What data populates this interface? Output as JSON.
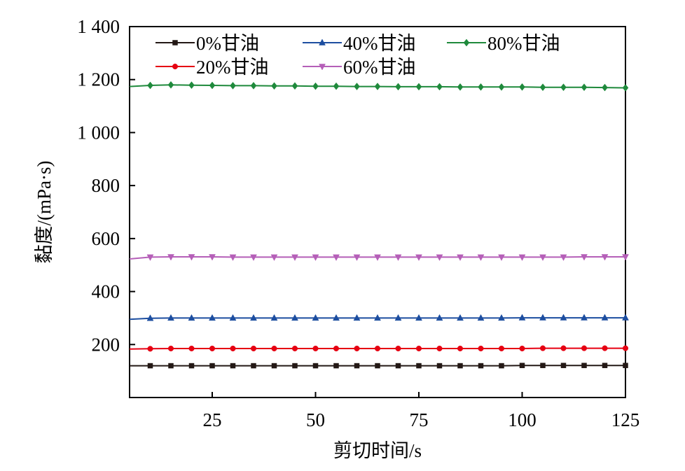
{
  "chart_data": {
    "type": "line",
    "title": "",
    "xlabel": "剪切时间/s",
    "ylabel": "黏度/(mPa·s)",
    "xlim": [
      5,
      125
    ],
    "ylim": [
      0,
      1400
    ],
    "x_ticks": [
      25,
      50,
      75,
      100,
      125
    ],
    "x_tick_labels": [
      "25",
      "50",
      "75",
      "100",
      "125"
    ],
    "y_ticks": [
      200,
      400,
      600,
      800,
      1000,
      1200,
      1400
    ],
    "y_tick_labels": [
      "200",
      "400",
      "600",
      "800",
      "1 000",
      "1 200",
      "1 400"
    ],
    "grid": false,
    "legend_position": "top",
    "x": [
      5,
      10,
      15,
      20,
      25,
      30,
      35,
      40,
      45,
      50,
      55,
      60,
      65,
      70,
      75,
      80,
      85,
      90,
      95,
      100,
      105,
      110,
      115,
      120,
      125
    ],
    "series": [
      {
        "name": "0%甘油",
        "color": "#231815",
        "marker": "square",
        "values": [
          120,
          120,
          120,
          120,
          120,
          120,
          120,
          120,
          120,
          120,
          120,
          120,
          120,
          120,
          120,
          120,
          120,
          120,
          120,
          121,
          121,
          121,
          121,
          121,
          121
        ]
      },
      {
        "name": "20%甘油",
        "color": "#e60012",
        "marker": "circle",
        "values": [
          183,
          184,
          185,
          185,
          185,
          185,
          185,
          185,
          185,
          185,
          185,
          185,
          185,
          185,
          185,
          185,
          185,
          185,
          185,
          185,
          186,
          186,
          186,
          186,
          186
        ]
      },
      {
        "name": "40%甘油",
        "color": "#1d4ea0",
        "marker": "triangle-up",
        "values": [
          295,
          299,
          300,
          300,
          300,
          300,
          300,
          300,
          300,
          300,
          300,
          300,
          300,
          300,
          300,
          300,
          300,
          300,
          300,
          301,
          301,
          301,
          301,
          301,
          301
        ]
      },
      {
        "name": "60%甘油",
        "color": "#b55fb8",
        "marker": "triangle-down",
        "values": [
          523,
          530,
          531,
          531,
          531,
          530,
          530,
          530,
          530,
          530,
          530,
          530,
          530,
          530,
          530,
          530,
          530,
          530,
          530,
          530,
          530,
          530,
          531,
          531,
          531
        ]
      },
      {
        "name": "80%甘油",
        "color": "#1f8a3c",
        "marker": "diamond",
        "values": [
          1174,
          1178,
          1180,
          1179,
          1178,
          1177,
          1177,
          1176,
          1176,
          1175,
          1175,
          1174,
          1174,
          1173,
          1173,
          1173,
          1172,
          1172,
          1172,
          1172,
          1171,
          1171,
          1171,
          1170,
          1169
        ]
      }
    ]
  }
}
